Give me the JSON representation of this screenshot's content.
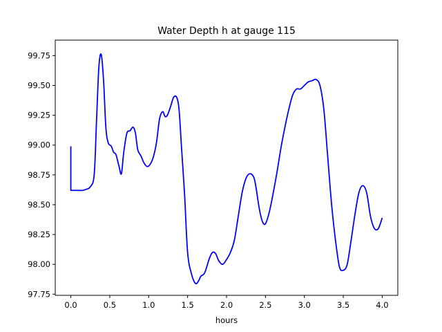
{
  "chart_data": {
    "type": "line",
    "title": "Water Depth h at gauge 115",
    "xlabel": "hours",
    "ylabel": "",
    "xlim": [
      -0.2,
      4.2
    ],
    "ylim": [
      97.74,
      99.88
    ],
    "xticks": [
      0.0,
      0.5,
      1.0,
      1.5,
      2.0,
      2.5,
      3.0,
      3.5,
      4.0
    ],
    "xtick_labels": [
      "0.0",
      "0.5",
      "1.0",
      "1.5",
      "2.0",
      "2.5",
      "3.0",
      "3.5",
      "4.0"
    ],
    "yticks": [
      97.75,
      98.0,
      98.25,
      98.5,
      98.75,
      99.0,
      99.25,
      99.5,
      99.75
    ],
    "ytick_labels": [
      "97.75",
      "98.00",
      "98.25",
      "98.50",
      "98.75",
      "99.00",
      "99.25",
      "99.50",
      "99.75"
    ],
    "grid": false,
    "series": [
      {
        "color": "#0000ff",
        "x": [
          0.0,
          0.0,
          0.05,
          0.1,
          0.15,
          0.2,
          0.25,
          0.3,
          0.33,
          0.36,
          0.39,
          0.42,
          0.45,
          0.48,
          0.52,
          0.55,
          0.58,
          0.62,
          0.65,
          0.68,
          0.72,
          0.76,
          0.8,
          0.83,
          0.86,
          0.9,
          0.94,
          0.98,
          1.02,
          1.06,
          1.1,
          1.14,
          1.18,
          1.21,
          1.24,
          1.28,
          1.32,
          1.36,
          1.39,
          1.42,
          1.46,
          1.5,
          1.55,
          1.6,
          1.64,
          1.67,
          1.72,
          1.78,
          1.82,
          1.86,
          1.9,
          1.95,
          2.0,
          2.05,
          2.1,
          2.15,
          2.2,
          2.25,
          2.3,
          2.35,
          2.38,
          2.42,
          2.46,
          2.5,
          2.55,
          2.6,
          2.65,
          2.7,
          2.75,
          2.8,
          2.85,
          2.9,
          2.95,
          3.0,
          3.05,
          3.1,
          3.15,
          3.2,
          3.25,
          3.3,
          3.35,
          3.4,
          3.45,
          3.5,
          3.55,
          3.6,
          3.65,
          3.7,
          3.75,
          3.8,
          3.85,
          3.9,
          3.95,
          4.0
        ],
        "values": [
          98.99,
          98.62,
          98.62,
          98.62,
          98.62,
          98.63,
          98.65,
          98.75,
          99.2,
          99.65,
          99.76,
          99.55,
          99.15,
          99.02,
          98.99,
          98.94,
          98.92,
          98.82,
          98.76,
          98.94,
          99.1,
          99.12,
          99.15,
          99.1,
          98.96,
          98.91,
          98.85,
          98.82,
          98.84,
          98.9,
          99.02,
          99.22,
          99.28,
          99.24,
          99.25,
          99.32,
          99.4,
          99.4,
          99.3,
          99.0,
          98.6,
          98.1,
          97.92,
          97.84,
          97.86,
          97.9,
          97.93,
          98.05,
          98.1,
          98.09,
          98.03,
          98.0,
          98.04,
          98.1,
          98.2,
          98.4,
          98.6,
          98.72,
          98.76,
          98.73,
          98.64,
          98.47,
          98.36,
          98.34,
          98.44,
          98.6,
          98.78,
          98.98,
          99.15,
          99.3,
          99.42,
          99.47,
          99.47,
          99.5,
          99.53,
          99.54,
          99.55,
          99.5,
          99.3,
          98.9,
          98.5,
          98.2,
          97.98,
          97.95,
          98.0,
          98.2,
          98.42,
          98.6,
          98.66,
          98.6,
          98.4,
          98.3,
          98.3,
          98.39
        ]
      }
    ]
  }
}
